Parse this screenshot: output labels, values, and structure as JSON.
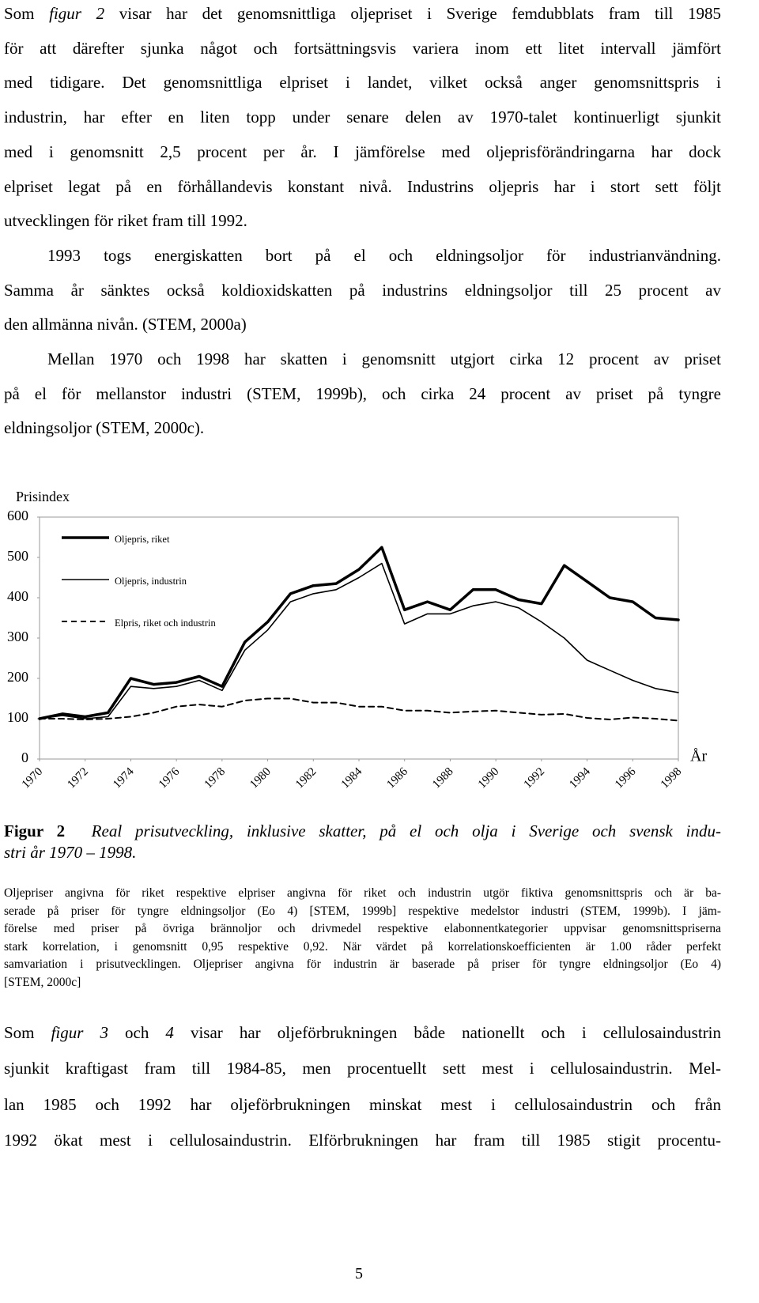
{
  "paragraphs": [
    {
      "lines": [
        [
          "Som ",
          "figur 2",
          " visar har det genomsnittliga oljepriset i Sverige femdubblats fram till 1985"
        ],
        "för att därefter sjunka något och fortsättningsvis variera inom ett litet intervall jämfört",
        "med tidigare. Det genomsnittliga elpriset i landet, vilket också anger genomsnittspris i",
        "industrin, har efter en liten topp under senare delen av 1970-talet kontinuerligt sjunkit",
        "med i genomsnitt 2,5 procent per år. I jämförelse med oljeprisförändringarna har dock",
        "elpriset legat på en förhållandevis konstant nivå. Industrins oljepris har i stort sett följt",
        "utvecklingen för riket fram till 1992."
      ]
    },
    {
      "lines": [
        "1993 togs energiskatten bort på el och eldningsoljor för industrianvändning.",
        "Samma år sänktes också koldioxidskatten på industrins eldningsoljor till 25 procent av",
        "den allmänna nivån. (STEM, 2000a)"
      ]
    },
    {
      "lines": [
        "Mellan 1970 och 1998 har skatten i genomsnitt utgjort cirka 12 procent av priset",
        "på el för mellanstor industri (STEM, 1999b), och cirka 24 procent av priset på tyngre",
        "eldningsoljor (STEM, 2000c)."
      ]
    }
  ],
  "chart_data": {
    "type": "line",
    "y_label": "Prisindex",
    "x_label": "År",
    "x": [
      1970,
      1971,
      1972,
      1973,
      1974,
      1975,
      1976,
      1977,
      1978,
      1979,
      1980,
      1981,
      1982,
      1983,
      1984,
      1985,
      1986,
      1987,
      1988,
      1989,
      1990,
      1991,
      1992,
      1993,
      1994,
      1995,
      1996,
      1997,
      1998
    ],
    "series": [
      {
        "name": "Oljepris, riket",
        "color": "#000000",
        "style": "thick",
        "values": [
          100,
          112,
          105,
          115,
          200,
          185,
          190,
          205,
          180,
          290,
          340,
          410,
          430,
          435,
          470,
          525,
          370,
          390,
          370,
          420,
          420,
          395,
          385,
          480,
          440,
          400,
          390,
          350,
          345
        ]
      },
      {
        "name": "Oljepris, industrin",
        "color": "#000000",
        "style": "thin",
        "values": [
          100,
          108,
          100,
          105,
          180,
          175,
          180,
          195,
          170,
          270,
          320,
          390,
          410,
          420,
          450,
          485,
          335,
          360,
          360,
          380,
          390,
          375,
          340,
          300,
          245,
          220,
          195,
          175,
          165
        ]
      },
      {
        "name": "Elpris, riket och industrin",
        "color": "#000000",
        "style": "dashed",
        "values": [
          100,
          100,
          98,
          100,
          105,
          115,
          130,
          135,
          130,
          145,
          150,
          150,
          140,
          140,
          130,
          130,
          120,
          120,
          115,
          118,
          120,
          115,
          110,
          112,
          102,
          98,
          103,
          100,
          95
        ]
      }
    ],
    "xlim": [
      1970,
      1998
    ],
    "xticks": [
      1970,
      1972,
      1974,
      1976,
      1978,
      1980,
      1982,
      1984,
      1986,
      1988,
      1990,
      1992,
      1994,
      1996,
      1998
    ],
    "ylim": [
      0,
      600
    ],
    "yticks": [
      0,
      100,
      200,
      300,
      400,
      500,
      600
    ],
    "grid": false
  },
  "figure": {
    "label": "Figur 2",
    "caption_lines": [
      "Real prisutveckling, inklusive skatter, på el och olja i Sverige och svensk indu-",
      "stri år 1970 – 1998."
    ]
  },
  "note": {
    "lines": [
      "Oljepriser angivna för riket respektive elpriser angivna för riket och industrin utgör fiktiva genomsnittspris och är ba-",
      "serade på priser för tyngre eldningsoljor (Eo 4) [STEM, 1999b] respektive medelstor industri (STEM, 1999b). I jäm-",
      "förelse med priser på övriga brännoljor och drivmedel respektive elabonnentkategorier uppvisar genomsnittspriserna",
      "stark korrelation, i genomsnitt 0,95 respektive 0,92. När värdet på korrelationskoefficienten är 1.00 råder perfekt",
      "samvariation i prisutvecklingen. Oljepriser angivna för industrin är baserade på priser för tyngre eldningsoljor (Eo 4)",
      "[STEM, 2000c]"
    ]
  },
  "last_paragraph": {
    "lines": [
      [
        "Som ",
        "figur 3",
        " och ",
        "4",
        " visar har oljeförbrukningen både nationellt och i cellulosaindustrin"
      ],
      "sjunkit kraftigast fram till 1984-85, men procentuellt sett mest i cellulosaindustrin. Mel-",
      "lan 1985 och 1992 har oljeförbrukningen minskat mest i cellulosaindustrin och från",
      "1992 ökat mest i cellulosaindustrin. Elförbrukningen har fram till 1985 stigit procentu-"
    ]
  },
  "page_number": "5"
}
